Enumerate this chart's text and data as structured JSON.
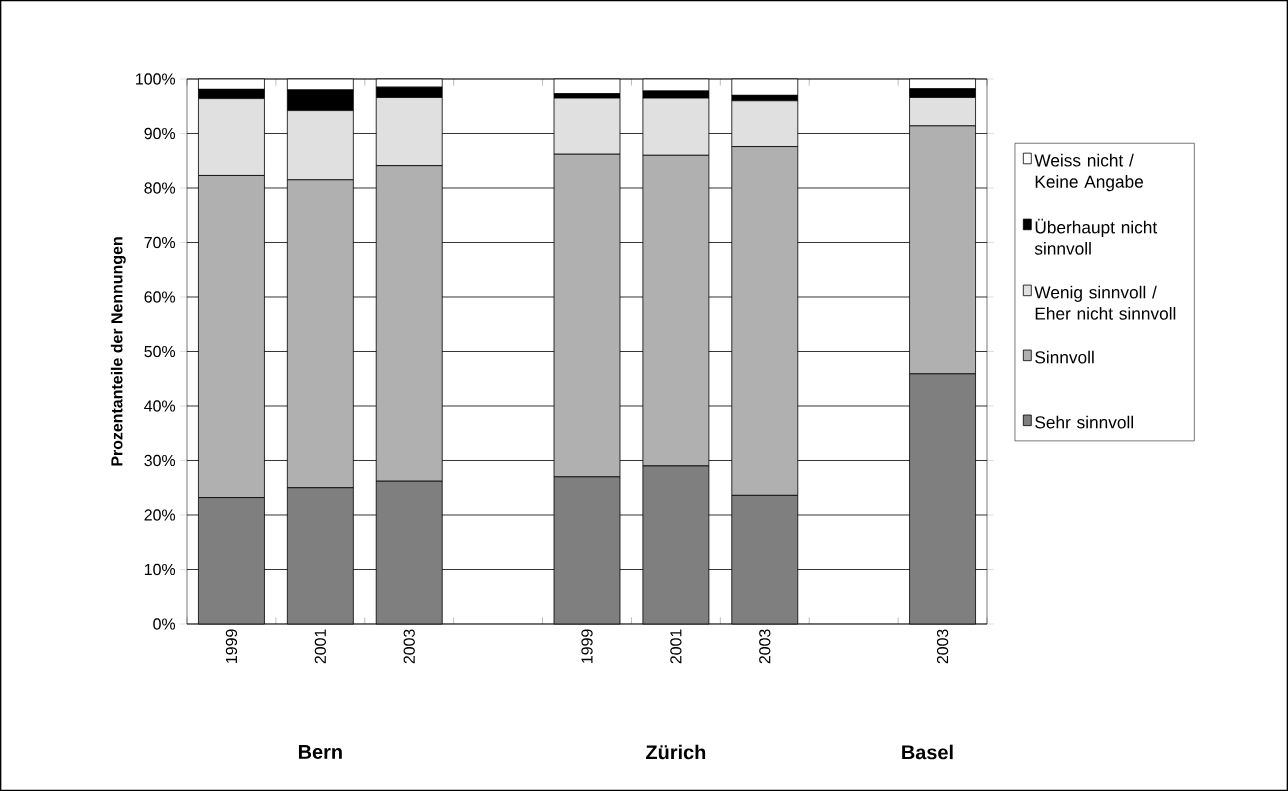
{
  "chart_data": {
    "type": "bar",
    "stacked": true,
    "ylabel": "Prozentanteile der Nennungen",
    "categories": [
      "1999",
      "2001",
      "2003",
      null,
      "1999",
      "2001",
      "2003",
      null,
      "2003"
    ],
    "series": [
      {
        "name": "Sehr sinnvoll",
        "color": "#7f7f7f",
        "values": [
          23.2,
          25.0,
          26.2,
          null,
          27.0,
          29.0,
          23.6,
          null,
          45.9
        ]
      },
      {
        "name": "Sinnvoll",
        "color": "#b0b0b0",
        "values": [
          59.1,
          56.5,
          57.9,
          null,
          59.2,
          57.0,
          64.0,
          null,
          45.5
        ]
      },
      {
        "name": "Wenig sinnvoll / Eher nicht sinnvoll",
        "color": "#e0e0e0",
        "values": [
          14.1,
          12.7,
          12.5,
          null,
          10.3,
          10.5,
          8.4,
          null,
          5.2
        ]
      },
      {
        "name": "Überhaupt nicht sinnvoll",
        "color": "#000000",
        "values": [
          1.7,
          3.8,
          1.9,
          null,
          0.8,
          1.3,
          1.0,
          null,
          1.6
        ]
      },
      {
        "name": "Weiss nicht / Keine Angabe",
        "color": "#ffffff",
        "values": [
          1.9,
          2.0,
          1.5,
          null,
          2.7,
          2.2,
          3.0,
          null,
          1.8
        ]
      }
    ],
    "ylim": [
      0,
      100
    ],
    "yticks": [
      {
        "value": 0,
        "label": "0%"
      },
      {
        "value": 10,
        "label": "10%"
      },
      {
        "value": 20,
        "label": "20%"
      },
      {
        "value": 30,
        "label": "30%"
      },
      {
        "value": 40,
        "label": "40%"
      },
      {
        "value": 50,
        "label": "50%"
      },
      {
        "value": 60,
        "label": "60%"
      },
      {
        "value": 70,
        "label": "70%"
      },
      {
        "value": 80,
        "label": "80%"
      },
      {
        "value": 90,
        "label": "90%"
      },
      {
        "value": 100,
        "label": "100%"
      }
    ],
    "grid": "y",
    "legend": "right",
    "annotations": [
      "Bern",
      "Zürich",
      "Basel"
    ]
  }
}
